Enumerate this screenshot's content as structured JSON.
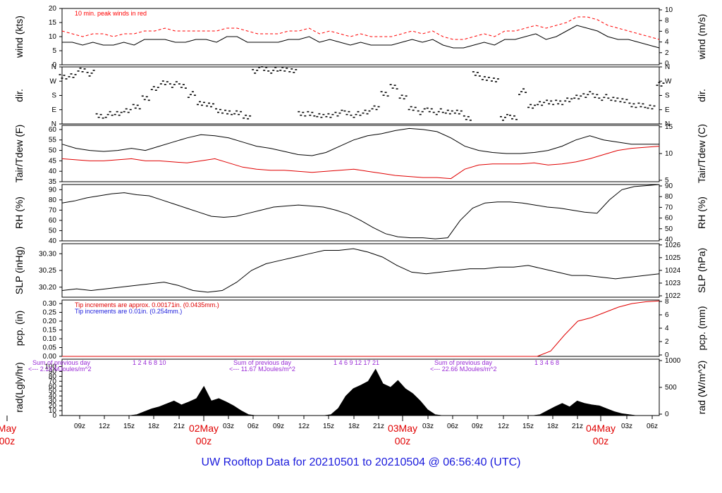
{
  "title": "UW Rooftop Data for 20210501  to  20210504 @ 06:56:40  (UTC)",
  "colors": {
    "peak": "#ff0000",
    "line": "#000000",
    "dew": "#e00000",
    "pcp_red": "#e00000",
    "pcp_blue": "#1a1adc",
    "rad_ann": "#9a2bd6",
    "day_label": "#e00000",
    "title": "#1a1adc"
  },
  "x_axis": {
    "hours": [
      "09z",
      "12z",
      "15z",
      "18z",
      "21z",
      "03z",
      "06z",
      "09z",
      "12z",
      "15z",
      "18z",
      "21z",
      "03z",
      "06z",
      "09z",
      "12z",
      "15z",
      "18z",
      "21z",
      "03z",
      "06z"
    ],
    "day_labels": [
      {
        "text": "May",
        "sub": "00z"
      },
      {
        "text": "02May",
        "sub": "00z"
      },
      {
        "text": "03May",
        "sub": "00z"
      },
      {
        "text": "04May",
        "sub": "00z"
      }
    ]
  },
  "chart_data": [
    {
      "type": "line",
      "panel": "wind",
      "ylabel_left": "wind (kts)",
      "ylabel_right": "wind (m/s)",
      "ylim": [
        0,
        20
      ],
      "yticks": [
        0,
        5,
        10,
        15,
        20
      ],
      "right_ticks": [
        "0",
        "2",
        "4",
        "6",
        "8",
        "10"
      ],
      "annotation": "10 min. peak winds in red",
      "series": [
        {
          "values": [
            8,
            8,
            7,
            8,
            7,
            7,
            8,
            7,
            9,
            9,
            9,
            8,
            8,
            9,
            9,
            8,
            10,
            10,
            8,
            8,
            8,
            8,
            9,
            9,
            10,
            8,
            9,
            8,
            7,
            8,
            7,
            7,
            7,
            8,
            9,
            8,
            9,
            7,
            6,
            6,
            7,
            8,
            7,
            9,
            9,
            10,
            11,
            9,
            10,
            12,
            14,
            13,
            12,
            10,
            9,
            9,
            8,
            7,
            6
          ]
        },
        {
          "values": [
            12,
            11,
            10,
            11,
            11,
            10,
            11,
            11,
            12,
            12,
            13,
            12,
            12,
            12,
            12,
            12,
            13,
            13,
            12,
            11,
            11,
            11,
            12,
            12,
            13,
            11,
            12,
            11,
            10,
            11,
            10,
            10,
            10,
            11,
            12,
            11,
            12,
            10,
            9,
            9,
            10,
            11,
            10,
            12,
            12,
            13,
            14,
            13,
            14,
            15,
            17,
            17,
            16,
            14,
            13,
            12,
            11,
            10,
            9
          ]
        }
      ]
    },
    {
      "type": "scatter",
      "panel": "dir",
      "ylabel": "dir.",
      "yticks": [
        "N",
        "E",
        "S",
        "W",
        "N"
      ],
      "series": [
        {
          "values": [
            3.3,
            3.5,
            3.8,
            3.6,
            0.6,
            0.7,
            0.8,
            0.9,
            1.3,
            1.8,
            2.6,
            2.9,
            2.8,
            2.7,
            2.1,
            1.5,
            1.3,
            1.0,
            0.8,
            0.9,
            0.5,
            3.8,
            3.9,
            3.8,
            3.9,
            3.7,
            0.8,
            0.7,
            0.7,
            0.6,
            0.8,
            0.8,
            0.7,
            0.9,
            1.1,
            2.2,
            2.6,
            2.0,
            1.1,
            0.9,
            1.0,
            0.9,
            0.9,
            0.8,
            0.5,
            3.5,
            3.3,
            3.1,
            0.5,
            0.5,
            2.3,
            1.3,
            1.4,
            1.6,
            1.5,
            1.8,
            1.9,
            2.1,
            2.0,
            1.9,
            1.8,
            1.6,
            1.4,
            1.3,
            1.3,
            2.8
          ]
        }
      ]
    },
    {
      "type": "line",
      "panel": "temp",
      "ylabel_left": "Tair/Tdew (F)",
      "ylabel_right": "Tair/Tdew (C)",
      "ylim": [
        35,
        62
      ],
      "yticks": [
        35,
        40,
        45,
        50,
        55,
        60
      ],
      "right_ticks": [
        "5",
        "10",
        "15"
      ],
      "series": [
        {
          "values": [
            53,
            51,
            50,
            49.5,
            50,
            51,
            50,
            52,
            54,
            56,
            57.5,
            57,
            56,
            54,
            52,
            51,
            49.5,
            48,
            47.5,
            49,
            52,
            55,
            57,
            58,
            59.5,
            60.5,
            60,
            59,
            56,
            52,
            50,
            49,
            48.5,
            48.5,
            49,
            50,
            52,
            55,
            57,
            55,
            54,
            53,
            53,
            53
          ]
        },
        {
          "values": [
            46,
            45.5,
            45,
            45,
            45.5,
            46,
            45,
            45,
            44.5,
            44,
            45,
            46,
            44,
            42,
            41,
            40.5,
            40.5,
            40,
            39.5,
            40,
            40.5,
            41,
            40,
            39,
            38,
            37.5,
            37,
            37,
            36.5,
            41,
            43,
            43.5,
            43.5,
            43.5,
            44,
            43,
            43.5,
            44.5,
            46,
            48,
            50,
            51,
            51.5,
            52
          ]
        }
      ]
    },
    {
      "type": "line",
      "panel": "rh",
      "ylabel_left": "RH (%)",
      "ylabel_right": "RH (%)",
      "ylim": [
        40,
        95
      ],
      "yticks": [
        40,
        50,
        60,
        70,
        80,
        90
      ],
      "right_ticks": [
        "40",
        "50",
        "60",
        "70",
        "80",
        "90"
      ],
      "series": [
        {
          "values": [
            77,
            79,
            82,
            84,
            86,
            87,
            85,
            84,
            80,
            76,
            72,
            68,
            64,
            63,
            64,
            67,
            70,
            73,
            74,
            75,
            74,
            73,
            70,
            66,
            60,
            53,
            47,
            44,
            43,
            43,
            42,
            43,
            60,
            72,
            77,
            78,
            78,
            77,
            75,
            73,
            72,
            70,
            68,
            67,
            80,
            90,
            93,
            94,
            95
          ]
        }
      ]
    },
    {
      "type": "line",
      "panel": "slp",
      "ylabel_left": "SLP (inHg)",
      "ylabel_right": "SLP (hPa)",
      "ylim": [
        30.17,
        30.33
      ],
      "yticks": [
        30.2,
        30.25,
        30.3
      ],
      "right_ticks": [
        "1022",
        "1023",
        "1024",
        "1025",
        "1026"
      ],
      "series": [
        {
          "values": [
            30.19,
            30.195,
            30.19,
            30.195,
            30.2,
            30.205,
            30.21,
            30.215,
            30.205,
            30.19,
            30.185,
            30.19,
            30.215,
            30.25,
            30.27,
            30.28,
            30.29,
            30.3,
            30.31,
            30.31,
            30.315,
            30.305,
            30.29,
            30.265,
            30.245,
            30.24,
            30.245,
            30.25,
            30.255,
            30.255,
            30.26,
            30.26,
            30.265,
            30.255,
            30.245,
            30.235,
            30.235,
            30.23,
            30.225,
            30.23,
            30.235,
            30.24
          ]
        }
      ]
    },
    {
      "type": "line",
      "panel": "pcp",
      "ylabel_left": "pcp. (in)",
      "ylabel_right": "pcp. (mm)",
      "ylim": [
        0,
        0.32
      ],
      "yticks": [
        0,
        0.05,
        0.1,
        0.15,
        0.2,
        0.25,
        0.3
      ],
      "right_ticks": [
        "0",
        "2",
        "4",
        "6",
        "8"
      ],
      "annotations": [
        "Tip increments are approx. 0.00171in. (0.0435mm.)",
        "Tip increments are 0.01in. (0.254mm.)"
      ],
      "series": [
        {
          "values": [
            0,
            0,
            0,
            0,
            0,
            0,
            0,
            0,
            0,
            0,
            0,
            0,
            0,
            0,
            0,
            0,
            0,
            0,
            0,
            0,
            0,
            0,
            0,
            0,
            0,
            0,
            0,
            0,
            0,
            0,
            0,
            0,
            0,
            0,
            0,
            0,
            0.03,
            0.12,
            0.2,
            0.22,
            0.25,
            0.28,
            0.3,
            0.31,
            0.315
          ]
        }
      ]
    },
    {
      "type": "area",
      "panel": "rad",
      "ylabel_left": "rad(Lgly/hr)",
      "ylabel_right": "rad (W/m^2)",
      "ylim": [
        0,
        115
      ],
      "yticks": [
        0,
        10,
        20,
        30,
        40,
        50,
        60,
        70,
        80,
        90,
        100
      ],
      "right_ticks": [
        "0",
        "500",
        "1000"
      ],
      "day_annotations": [
        {
          "line1": "Sum of previous day",
          "line2": "<--- 2.18 MJoules/m^2",
          "hours": "1   2   4   6   8   10"
        },
        {
          "line1": "Sum of previous day",
          "line2": "<--- 11.67 MJoules/m^2",
          "hours": "1   4   6   9   12   17   21"
        },
        {
          "line1": "Sum of previous day",
          "line2": "<--- 22.66 MJoules/m^2",
          "hours": "1   3   4   6   8"
        }
      ],
      "series": [
        {
          "values": [
            0,
            0,
            0,
            0,
            0,
            0,
            0,
            0,
            0,
            0,
            2,
            8,
            14,
            18,
            24,
            30,
            22,
            28,
            35,
            60,
            30,
            35,
            28,
            20,
            10,
            2,
            0,
            0,
            0,
            0,
            0,
            0,
            0,
            0,
            0,
            0,
            2,
            15,
            40,
            55,
            62,
            70,
            95,
            65,
            58,
            72,
            55,
            45,
            30,
            12,
            2,
            0,
            0,
            0,
            0,
            0,
            0,
            0,
            0,
            0,
            0,
            0,
            0,
            0,
            2,
            10,
            18,
            25,
            18,
            30,
            25,
            22,
            20,
            14,
            8,
            4,
            2,
            0,
            0,
            0,
            0
          ]
        }
      ]
    }
  ]
}
